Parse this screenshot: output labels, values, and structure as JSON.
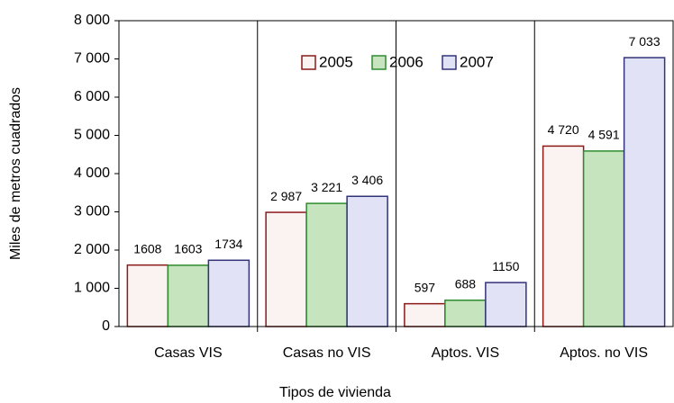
{
  "chart_data": {
    "type": "bar",
    "categories": [
      "Casas VIS",
      "Casas no VIS",
      "Aptos. VIS",
      "Aptos. no VIS"
    ],
    "series": [
      {
        "name": "2005",
        "color": "#fbf3f1",
        "edge": "#8b1a1a",
        "values": [
          1608,
          2987,
          597,
          4720
        ],
        "value_labels": [
          "1608",
          "2 987",
          "597",
          "4 720"
        ]
      },
      {
        "name": "2006",
        "color": "#c6e4bd",
        "edge": "#2e8b2e",
        "values": [
          1603,
          3221,
          688,
          4591
        ],
        "value_labels": [
          "1603",
          "3 221",
          "688",
          "4 591"
        ]
      },
      {
        "name": "2007",
        "color": "#e2e2f6",
        "edge": "#33337a",
        "values": [
          1734,
          3406,
          1150,
          7033
        ],
        "value_labels": [
          "1734",
          "3 406",
          "1150",
          "7 033"
        ]
      }
    ],
    "ylabel": "Miles de metros cuadrados",
    "xlabel": "Tipos de vivienda",
    "ylim": [
      0,
      8000
    ],
    "yticks": [
      0,
      {
        "value": 1000,
        "label": "1 000"
      },
      {
        "value": 2000,
        "label": "2 000"
      },
      {
        "value": 3000,
        "label": "3 000"
      },
      {
        "value": 4000,
        "label": "4 000"
      },
      {
        "value": 5000,
        "label": "5 000"
      },
      {
        "value": 6000,
        "label": "6 000"
      },
      {
        "value": 7000,
        "label": "7 000"
      },
      {
        "value": 8000,
        "label": "8 000"
      }
    ],
    "legend": "top"
  }
}
